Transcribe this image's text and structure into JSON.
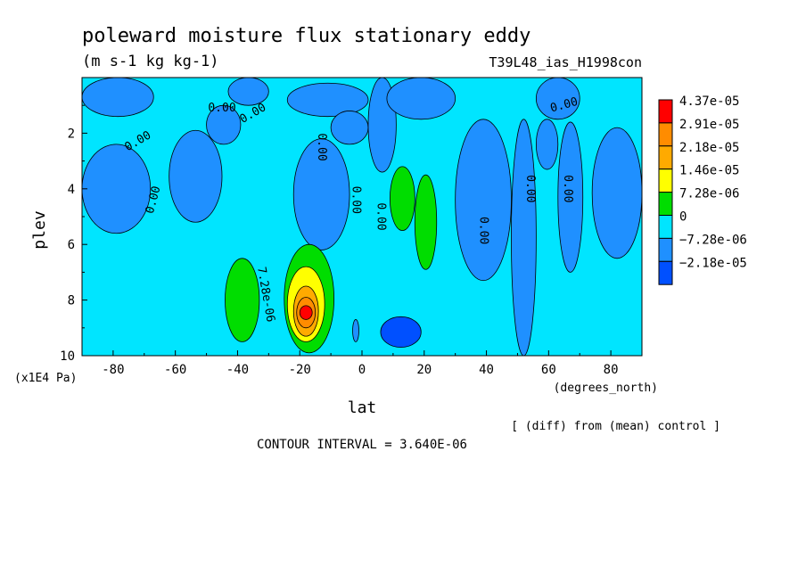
{
  "chart_data": {
    "type": "heatmap",
    "title": "poleward moisture flux stationary eddy",
    "units": "(m s-1 kg kg-1)",
    "experiment": "T39L48_ias_H1998con",
    "xlabel": "lat",
    "x_units": "(degrees_north)",
    "ylabel": "plev",
    "y_units": "(x1E4 Pa)",
    "footer_right": "[ (diff) from (mean) control ]",
    "contour_interval": "CONTOUR INTERVAL = 3.640E-06",
    "xlim": [
      -90,
      90
    ],
    "ylim": [
      10,
      0
    ],
    "y_inverted": true,
    "x_ticks": [
      -80,
      -60,
      -40,
      -20,
      0,
      20,
      40,
      60,
      80
    ],
    "x_tick_labels": [
      "-80",
      "-60",
      "-40",
      "-20",
      "0",
      "20",
      "40",
      "60",
      "80"
    ],
    "y_ticks": [
      2,
      4,
      6,
      8,
      10
    ],
    "y_tick_labels": [
      "2",
      "4",
      "6",
      "8",
      "10"
    ],
    "colorbar": {
      "labels": [
        "4.37e-05",
        "2.91e-05",
        "2.18e-05",
        "1.46e-05",
        "7.28e-06",
        "0",
        "−7.28e-06",
        "−2.18e-05"
      ],
      "colors": [
        "#ff0000",
        "#ff8c00",
        "#ffaa00",
        "#ffff00",
        "#00dd00",
        "#00e5ff",
        "#1f90ff",
        "#0050ff"
      ]
    },
    "contour_labels": [
      {
        "text": "0.00",
        "lon": -45,
        "p": 1.1,
        "angle": 0
      },
      {
        "text": "0.00",
        "lon": -35,
        "p": 1.3,
        "angle": -30
      },
      {
        "text": "0.00",
        "lon": -72,
        "p": 2.3,
        "angle": -30
      },
      {
        "text": "0.00",
        "lon": -67,
        "p": 4.4,
        "angle": -75
      },
      {
        "text": "0.00",
        "lon": -13,
        "p": 2.5,
        "angle": 90
      },
      {
        "text": "0.00",
        "lon": -2,
        "p": 4.4,
        "angle": 90
      },
      {
        "text": "0.00",
        "lon": 6,
        "p": 5.0,
        "angle": 90
      },
      {
        "text": "7.28e-06",
        "lon": -31,
        "p": 7.8,
        "angle": 80
      },
      {
        "text": "0.00",
        "lon": 39,
        "p": 5.5,
        "angle": 90
      },
      {
        "text": "0.00",
        "lon": 54,
        "p": 4.0,
        "angle": 90
      },
      {
        "text": "0.00",
        "lon": 66,
        "p": 4.0,
        "angle": 90
      },
      {
        "text": "0.00",
        "lon": 65,
        "p": 1.0,
        "angle": -15
      }
    ],
    "regions": [
      {
        "level": "−7.28e-06",
        "color": "#1f90ff",
        "lon": [
          -90,
          -67
        ],
        "p": [
          0.0,
          1.4
        ]
      },
      {
        "level": "−7.28e-06",
        "color": "#1f90ff",
        "lon": [
          -43,
          -30
        ],
        "p": [
          0.0,
          1.0
        ]
      },
      {
        "level": "−7.28e-06",
        "color": "#1f90ff",
        "lon": [
          -24,
          2
        ],
        "p": [
          0.2,
          1.4
        ]
      },
      {
        "level": "−7.28e-06",
        "color": "#1f90ff",
        "lon": [
          -10,
          2
        ],
        "p": [
          1.2,
          2.4
        ]
      },
      {
        "level": "−7.28e-06",
        "color": "#1f90ff",
        "lon": [
          -22,
          -4
        ],
        "p": [
          2.2,
          6.2
        ]
      },
      {
        "level": "−7.28e-06",
        "color": "#1f90ff",
        "lon": [
          -90,
          -68
        ],
        "p": [
          2.4,
          5.6
        ]
      },
      {
        "level": "−7.28e-06",
        "color": "#1f90ff",
        "lon": [
          -62,
          -45
        ],
        "p": [
          1.9,
          5.2
        ]
      },
      {
        "level": "−7.28e-06",
        "color": "#1f90ff",
        "lon": [
          -50,
          -39
        ],
        "p": [
          1.0,
          2.4
        ]
      },
      {
        "level": "−7.28e-06",
        "color": "#1f90ff",
        "lon": [
          2,
          11
        ],
        "p": [
          0.0,
          3.4
        ]
      },
      {
        "level": "−7.28e-06",
        "color": "#1f90ff",
        "lon": [
          8,
          30
        ],
        "p": [
          0.0,
          1.5
        ]
      },
      {
        "level": "−7.28e-06",
        "color": "#1f90ff",
        "lon": [
          30,
          48
        ],
        "p": [
          1.5,
          7.3
        ]
      },
      {
        "level": "−7.28e-06",
        "color": "#1f90ff",
        "lon": [
          48,
          56
        ],
        "p": [
          1.5,
          10
        ]
      },
      {
        "level": "−7.28e-06",
        "color": "#1f90ff",
        "lon": [
          56,
          70
        ],
        "p": [
          0.0,
          1.5
        ]
      },
      {
        "level": "−7.28e-06",
        "color": "#1f90ff",
        "lon": [
          56,
          63
        ],
        "p": [
          1.5,
          3.3
        ]
      },
      {
        "level": "−7.28e-06",
        "color": "#1f90ff",
        "lon": [
          63,
          71
        ],
        "p": [
          1.6,
          7.0
        ]
      },
      {
        "level": "−7.28e-06",
        "color": "#1f90ff",
        "lon": [
          74,
          90
        ],
        "p": [
          1.8,
          6.5
        ]
      },
      {
        "level": "−7.28e-06",
        "color": "#1f90ff",
        "lon": [
          -3,
          -1
        ],
        "p": [
          8.7,
          9.5
        ]
      },
      {
        "level": "−2.18e-05",
        "color": "#0050ff",
        "lon": [
          6,
          19
        ],
        "p": [
          8.6,
          9.7
        ]
      },
      {
        "level": "7.28e-06",
        "color": "#00dd00",
        "lon": [
          -44,
          -33
        ],
        "p": [
          6.5,
          9.5
        ]
      },
      {
        "level": "7.28e-06",
        "color": "#00dd00",
        "lon": [
          -25,
          -9
        ],
        "p": [
          6.0,
          9.9
        ]
      },
      {
        "level": "7.28e-06",
        "color": "#00dd00",
        "lon": [
          9,
          17
        ],
        "p": [
          3.2,
          5.5
        ]
      },
      {
        "level": "7.28e-06",
        "color": "#00dd00",
        "lon": [
          17,
          24
        ],
        "p": [
          3.5,
          6.9
        ]
      },
      {
        "level": "1.46e-05",
        "color": "#ffff00",
        "lon": [
          -24,
          -12
        ],
        "p": [
          6.8,
          9.5
        ]
      },
      {
        "level": "2.18e-05",
        "color": "#ffaa00",
        "lon": [
          -22,
          -14
        ],
        "p": [
          7.5,
          9.3
        ]
      },
      {
        "level": "2.91e-05",
        "color": "#ff8c00",
        "lon": [
          -21,
          -15
        ],
        "p": [
          7.9,
          9.0
        ]
      },
      {
        "level": "4.37e-05",
        "color": "#ff0000",
        "lon": [
          -20,
          -16
        ],
        "p": [
          8.2,
          8.7
        ]
      }
    ]
  }
}
